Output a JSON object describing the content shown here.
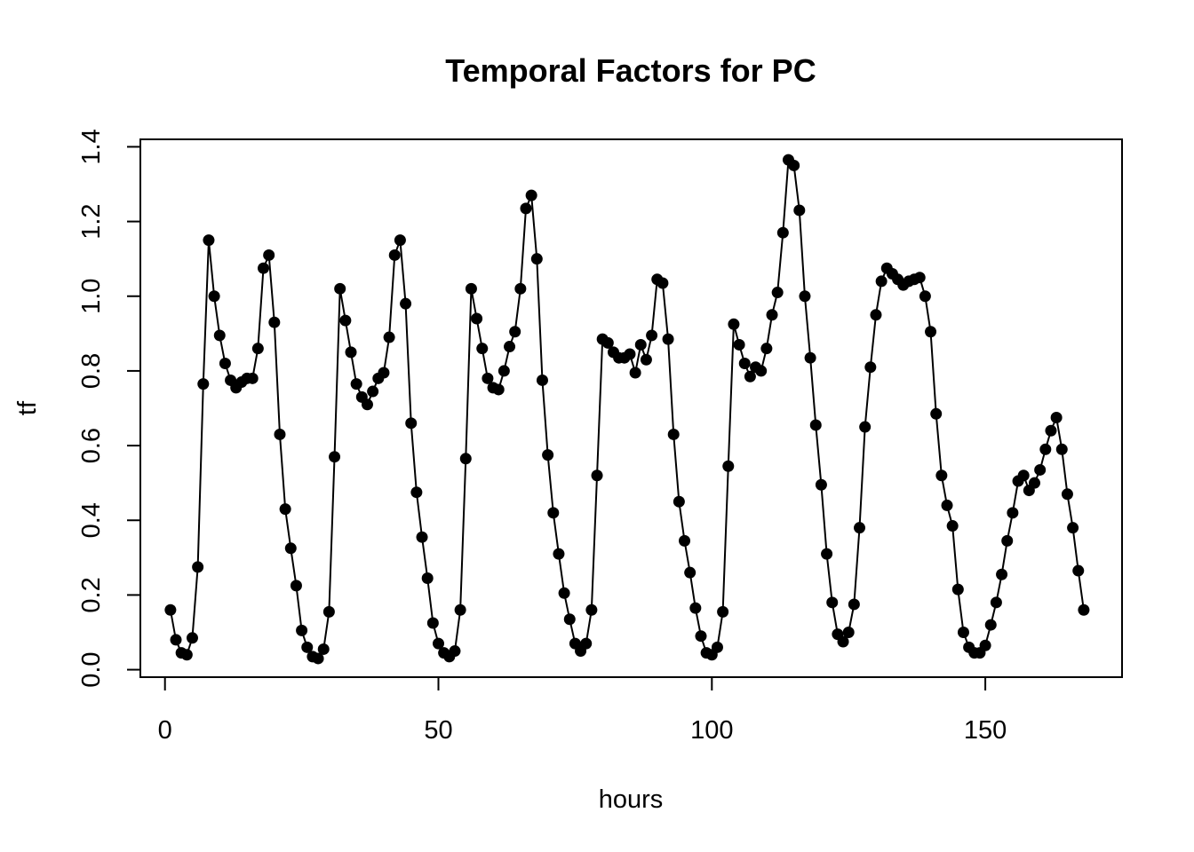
{
  "chart_data": {
    "type": "line",
    "title": "Temporal Factors for PC",
    "xlabel": "hours",
    "ylabel": "tf",
    "xlim": [
      -4.5,
      175
    ],
    "ylim": [
      -0.02,
      1.42
    ],
    "xticks": [
      0,
      50,
      100,
      150
    ],
    "yticks": [
      0.0,
      0.2,
      0.4,
      0.6,
      0.8,
      1.0,
      1.2,
      1.4
    ],
    "xtick_labels": [
      "0",
      "50",
      "100",
      "150"
    ],
    "ytick_labels": [
      "0.0",
      "0.2",
      "0.4",
      "0.6",
      "0.8",
      "1.0",
      "1.2",
      "1.4"
    ],
    "grid": false,
    "marker": "filled-circle",
    "color": "#000000",
    "series": [
      {
        "x": [
          1,
          2,
          3,
          4,
          5,
          6,
          7,
          8,
          9,
          10,
          11,
          12,
          13,
          14,
          15,
          16,
          17,
          18,
          19,
          20,
          21,
          22,
          23,
          24,
          25,
          26,
          27,
          28,
          29,
          30,
          31,
          32,
          33,
          34,
          35,
          36,
          37,
          38,
          39,
          40,
          41,
          42,
          43,
          44,
          45,
          46,
          47,
          48,
          49,
          50,
          51,
          52,
          53,
          54,
          55,
          56,
          57,
          58,
          59,
          60,
          61,
          62,
          63,
          64,
          65,
          66,
          67,
          68,
          69,
          70,
          71,
          72,
          73,
          74,
          75,
          76,
          77,
          78,
          79,
          80,
          81,
          82,
          83,
          84,
          85,
          86,
          87,
          88,
          89,
          90,
          91,
          92,
          93,
          94,
          95,
          96,
          97,
          98,
          99,
          100,
          101,
          102,
          103,
          104,
          105,
          106,
          107,
          108,
          109,
          110,
          111,
          112,
          113,
          114,
          115,
          116,
          117,
          118,
          119,
          120,
          121,
          122,
          123,
          124,
          125,
          126,
          127,
          128,
          129,
          130,
          131,
          132,
          133,
          134,
          135,
          136,
          137,
          138,
          139,
          140,
          141,
          142,
          143,
          144,
          145,
          146,
          147,
          148,
          149,
          150,
          151,
          152,
          153,
          154,
          155,
          156,
          157,
          158,
          159,
          160,
          161,
          162,
          163,
          164,
          165,
          166,
          167,
          168
        ],
        "values": [
          0.16,
          0.08,
          0.045,
          0.04,
          0.085,
          0.275,
          0.765,
          1.15,
          1.0,
          0.895,
          0.82,
          0.775,
          0.755,
          0.77,
          0.78,
          0.78,
          0.86,
          1.075,
          1.11,
          0.93,
          0.63,
          0.43,
          0.325,
          0.225,
          0.105,
          0.06,
          0.035,
          0.03,
          0.055,
          0.155,
          0.57,
          1.02,
          0.935,
          0.85,
          0.765,
          0.73,
          0.71,
          0.745,
          0.78,
          0.795,
          0.89,
          1.11,
          1.15,
          0.98,
          0.66,
          0.475,
          0.355,
          0.245,
          0.125,
          0.07,
          0.045,
          0.035,
          0.05,
          0.16,
          0.565,
          1.02,
          0.94,
          0.86,
          0.78,
          0.755,
          0.75,
          0.8,
          0.865,
          0.905,
          1.02,
          1.235,
          1.27,
          1.1,
          0.775,
          0.575,
          0.42,
          0.31,
          0.205,
          0.135,
          0.07,
          0.05,
          0.07,
          0.16,
          0.52,
          0.885,
          0.875,
          0.85,
          0.835,
          0.835,
          0.845,
          0.795,
          0.87,
          0.83,
          0.895,
          1.045,
          1.035,
          0.885,
          0.63,
          0.45,
          0.345,
          0.26,
          0.165,
          0.09,
          0.045,
          0.04,
          0.06,
          0.155,
          0.545,
          0.925,
          0.87,
          0.82,
          0.785,
          0.81,
          0.8,
          0.86,
          0.95,
          1.01,
          1.17,
          1.365,
          1.35,
          1.23,
          1.0,
          0.835,
          0.655,
          0.495,
          0.31,
          0.18,
          0.095,
          0.075,
          0.1,
          0.175,
          0.38,
          0.65,
          0.81,
          0.95,
          1.04,
          1.075,
          1.06,
          1.045,
          1.03,
          1.04,
          1.045,
          1.05,
          1.0,
          0.905,
          0.685,
          0.52,
          0.44,
          0.385,
          0.215,
          0.1,
          0.06,
          0.045,
          0.045,
          0.065,
          0.12,
          0.18,
          0.255,
          0.345,
          0.42,
          0.505,
          0.52,
          0.48,
          0.5,
          0.535,
          0.59,
          0.64,
          0.675,
          0.59,
          0.47,
          0.38,
          0.265,
          0.16
        ]
      }
    ]
  }
}
